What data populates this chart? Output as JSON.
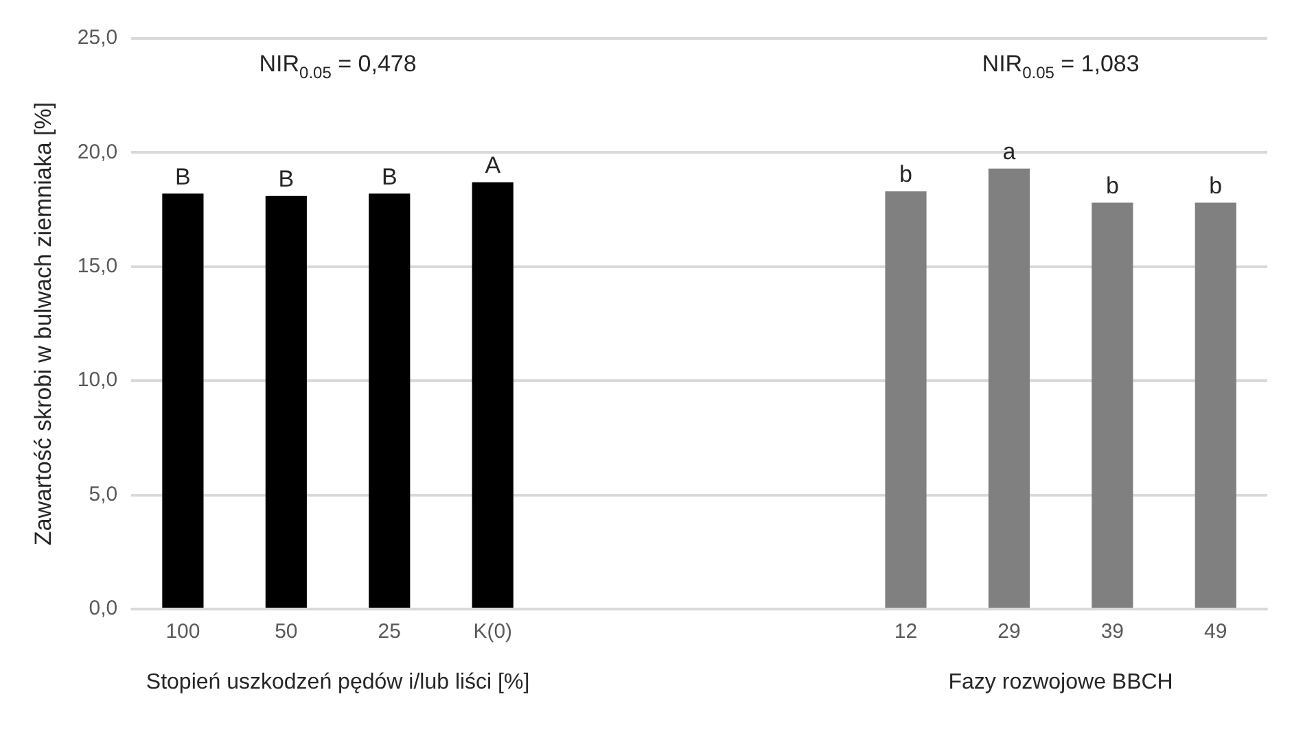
{
  "chart_data": {
    "type": "bar",
    "ylabel": "Zawartość skrobi w bulwach ziemniaka [%]",
    "xlabel": "Stopień uszkodzeń pędów i/lub liści [%]",
    "categories": [
      "100",
      "50",
      "25",
      "K(0)",
      null,
      null,
      null,
      "12",
      "29",
      "39",
      "49"
    ],
    "values": [
      18.2,
      18.1,
      18.2,
      18.7,
      null,
      null,
      null,
      18.3,
      19.3,
      17.8,
      17.8
    ],
    "colors": [
      "#000000",
      "#000000",
      "#000000",
      "#000000",
      null,
      null,
      null,
      "#808080",
      "#808080",
      "#808080",
      "#808080"
    ],
    "value_labels": [
      "B",
      "B",
      "B",
      "A",
      null,
      null,
      null,
      "b",
      "a",
      "b",
      "b"
    ],
    "annotations": [
      "NIR$_{0.05}$ = 0,478",
      "NIR$_{0.05}$ = 1,083",
      "Fazy rozwojowe BBCH"
    ],
    "ylim": [
      0,
      25
    ],
    "yticks": [
      {
        "value": 0,
        "label": "0,0"
      },
      {
        "value": 5,
        "label": "5,0"
      },
      {
        "value": 10,
        "label": "10,0"
      },
      {
        "value": 15,
        "label": "15,0"
      },
      {
        "value": 20,
        "label": "20,0"
      },
      {
        "value": 25,
        "label": "25,0"
      }
    ],
    "grid": "y",
    "legend": false
  }
}
